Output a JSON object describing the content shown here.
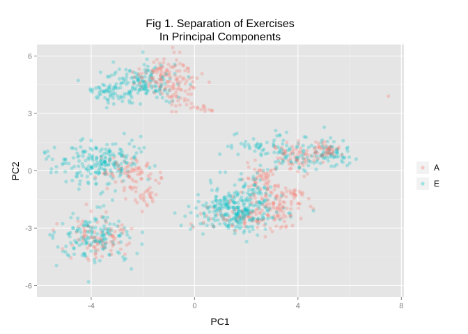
{
  "chart_data": {
    "type": "scatter",
    "title_line1": "Fig 1. Separation of Exercises",
    "title_line2": "In Principal Components",
    "xlabel": "PC1",
    "ylabel": "PC2",
    "xlim": [
      -6.1,
      8.1
    ],
    "ylim": [
      -6.6,
      6.6
    ],
    "x_ticks": [
      -4,
      0,
      4,
      8
    ],
    "y_ticks": [
      -6,
      -3,
      0,
      3,
      6
    ],
    "x_tick_labels": [
      "-4",
      "0",
      "4",
      "8"
    ],
    "y_tick_labels": [
      "-6",
      "-3",
      "0",
      "3",
      "6"
    ],
    "grid": true,
    "legend_placement": "right",
    "background": "#e5e5e5",
    "series": [
      {
        "name": "A",
        "color": "#f8766d",
        "clusters": [
          {
            "cx": -1.1,
            "cy": 5.0,
            "sx": 0.6,
            "sy": 0.5,
            "n": 120
          },
          {
            "cx": -0.6,
            "cy": 3.9,
            "sx": 0.4,
            "sy": 0.4,
            "n": 30
          },
          {
            "cx": 0.3,
            "cy": 3.3,
            "sx": 0.3,
            "sy": 0.2,
            "n": 12
          },
          {
            "cx": -2.6,
            "cy": 0.0,
            "sx": 0.5,
            "sy": 0.4,
            "n": 70
          },
          {
            "cx": -1.8,
            "cy": -1.2,
            "sx": 0.3,
            "sy": 0.4,
            "n": 30
          },
          {
            "cx": -3.6,
            "cy": -3.5,
            "sx": 0.6,
            "sy": 0.5,
            "n": 90
          },
          {
            "cx": 2.5,
            "cy": -0.5,
            "sx": 0.4,
            "sy": 0.5,
            "n": 50
          },
          {
            "cx": 3.0,
            "cy": -1.8,
            "sx": 0.5,
            "sy": 0.5,
            "n": 80
          },
          {
            "cx": 2.0,
            "cy": -2.5,
            "sx": 0.8,
            "sy": 0.4,
            "n": 70
          },
          {
            "cx": 3.9,
            "cy": 0.8,
            "sx": 0.5,
            "sy": 0.4,
            "n": 60
          },
          {
            "cx": 5.0,
            "cy": 1.1,
            "sx": 0.3,
            "sy": 0.2,
            "n": 50
          },
          {
            "cx": 3.8,
            "cy": -1.2,
            "sx": 0.3,
            "sy": 0.2,
            "n": 20
          }
        ],
        "outliers": [
          [
            7.5,
            3.9
          ]
        ]
      },
      {
        "name": "E",
        "color": "#00bfc4",
        "clusters": [
          {
            "cx": -2.0,
            "cy": 4.6,
            "sx": 0.8,
            "sy": 0.5,
            "n": 150
          },
          {
            "cx": -3.3,
            "cy": 4.2,
            "sx": 0.4,
            "sy": 0.3,
            "n": 40
          },
          {
            "cx": -3.7,
            "cy": 0.4,
            "sx": 0.9,
            "sy": 0.6,
            "n": 200
          },
          {
            "cx": -3.9,
            "cy": -3.4,
            "sx": 0.7,
            "sy": 0.6,
            "n": 150
          },
          {
            "cx": 1.6,
            "cy": -2.2,
            "sx": 0.8,
            "sy": 0.5,
            "n": 250
          },
          {
            "cx": 2.2,
            "cy": -1.0,
            "sx": 0.6,
            "sy": 0.5,
            "n": 60
          },
          {
            "cx": 3.8,
            "cy": 1.0,
            "sx": 0.8,
            "sy": 0.5,
            "n": 100
          },
          {
            "cx": 5.3,
            "cy": 0.8,
            "sx": 0.4,
            "sy": 0.3,
            "n": 40
          },
          {
            "cx": 2.0,
            "cy": 1.4,
            "sx": 0.5,
            "sy": 0.3,
            "n": 25
          }
        ],
        "outliers": [
          [
            -5.5,
            0.6
          ],
          [
            -4.1,
            -5.8
          ],
          [
            -3.4,
            3.3
          ],
          [
            6.0,
            0.4
          ],
          [
            -2.0,
            6.2
          ]
        ]
      }
    ]
  }
}
